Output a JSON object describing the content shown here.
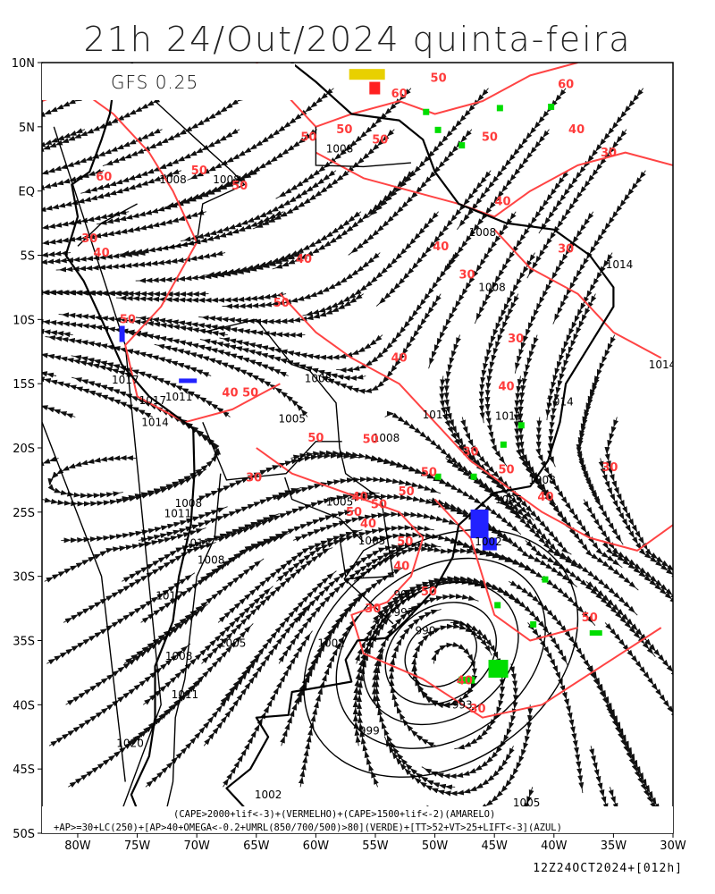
{
  "header": {
    "title": "21h 24/Out/2024 quinta-feira",
    "model": "GFS 0.25"
  },
  "axes": {
    "lat_labels": [
      "10N",
      "5N",
      "EQ",
      "5S",
      "10S",
      "15S",
      "20S",
      "25S",
      "30S",
      "35S",
      "40S",
      "45S",
      "50S"
    ],
    "lon_labels": [
      "80W",
      "75W",
      "70W",
      "65W",
      "60W",
      "55W",
      "50W",
      "45W",
      "40W",
      "35W",
      "30W"
    ]
  },
  "isobar_labels": [
    {
      "text": "1008",
      "lat": 3.0,
      "lon": -58.0
    },
    {
      "text": "1008",
      "lat": 0.6,
      "lon": -72.0
    },
    {
      "text": "1008",
      "lat": 0.6,
      "lon": -67.5
    },
    {
      "text": "1008",
      "lat": -3.5,
      "lon": -46.0
    },
    {
      "text": "1014",
      "lat": -6.0,
      "lon": -34.5
    },
    {
      "text": "1008",
      "lat": -7.8,
      "lon": -45.2
    },
    {
      "text": "1017",
      "lat": -15.0,
      "lon": -76.0
    },
    {
      "text": "1017",
      "lat": -16.6,
      "lon": -73.7
    },
    {
      "text": "1011",
      "lat": -16.3,
      "lon": -71.5
    },
    {
      "text": "1014",
      "lat": -18.3,
      "lon": -73.5
    },
    {
      "text": "1008",
      "lat": -14.9,
      "lon": -59.8
    },
    {
      "text": "1005",
      "lat": -18.0,
      "lon": -62.0
    },
    {
      "text": "1011",
      "lat": -17.7,
      "lon": -49.9
    },
    {
      "text": "1011",
      "lat": -17.8,
      "lon": -43.8
    },
    {
      "text": "1014",
      "lat": -16.7,
      "lon": -39.5
    },
    {
      "text": "1008",
      "lat": -19.5,
      "lon": -54.1
    },
    {
      "text": "1005",
      "lat": -24.5,
      "lon": -58.0
    },
    {
      "text": "1005",
      "lat": -24.3,
      "lon": -43.8
    },
    {
      "text": "1008",
      "lat": -22.8,
      "lon": -41.0
    },
    {
      "text": "1008",
      "lat": -24.6,
      "lon": -70.7
    },
    {
      "text": "1011",
      "lat": -25.4,
      "lon": -71.6
    },
    {
      "text": "1011",
      "lat": -27.7,
      "lon": -70.0
    },
    {
      "text": "1008",
      "lat": -29.0,
      "lon": -68.8
    },
    {
      "text": "1005",
      "lat": -27.5,
      "lon": -55.3
    },
    {
      "text": "1002",
      "lat": -27.6,
      "lon": -45.5
    },
    {
      "text": "1017",
      "lat": -31.8,
      "lon": -72.3
    },
    {
      "text": "996",
      "lat": -31.7,
      "lon": -52.6
    },
    {
      "text": "993",
      "lat": -33.1,
      "lon": -52.6
    },
    {
      "text": "990",
      "lat": -34.5,
      "lon": -50.8
    },
    {
      "text": "1005",
      "lat": -35.5,
      "lon": -67.0
    },
    {
      "text": "1002",
      "lat": -35.5,
      "lon": -58.7
    },
    {
      "text": "1008",
      "lat": -36.5,
      "lon": -71.5
    },
    {
      "text": "1011",
      "lat": -39.5,
      "lon": -71.0
    },
    {
      "text": "993",
      "lat": -40.3,
      "lon": -47.7
    },
    {
      "text": "999",
      "lat": -42.3,
      "lon": -55.5
    },
    {
      "text": "1020",
      "lat": -43.3,
      "lon": -75.6
    },
    {
      "text": "1002",
      "lat": -47.3,
      "lon": -64.0
    },
    {
      "text": "1005",
      "lat": -47.9,
      "lon": -42.3
    },
    {
      "text": "1014",
      "lat": -13.8,
      "lon": -30.9
    }
  ],
  "cape_labels": [
    {
      "text": "60",
      "lat": 7.3,
      "lon": -53.0
    },
    {
      "text": "50",
      "lat": 8.5,
      "lon": -49.7
    },
    {
      "text": "60",
      "lat": 8.0,
      "lon": -39.0
    },
    {
      "text": "50",
      "lat": 4.5,
      "lon": -57.6
    },
    {
      "text": "50",
      "lat": 3.9,
      "lon": -60.6
    },
    {
      "text": "50",
      "lat": 3.7,
      "lon": -54.6
    },
    {
      "text": "50",
      "lat": 3.9,
      "lon": -45.4
    },
    {
      "text": "40",
      "lat": 4.5,
      "lon": -38.1
    },
    {
      "text": "30",
      "lat": 2.7,
      "lon": -35.4
    },
    {
      "text": "60",
      "lat": 0.8,
      "lon": -77.8
    },
    {
      "text": "50",
      "lat": 1.3,
      "lon": -69.8
    },
    {
      "text": "50",
      "lat": 0.1,
      "lon": -66.4
    },
    {
      "text": "40",
      "lat": -1.1,
      "lon": -44.3
    },
    {
      "text": "30",
      "lat": -4.0,
      "lon": -79.0
    },
    {
      "text": "40",
      "lat": -5.1,
      "lon": -78.0
    },
    {
      "text": "40",
      "lat": -4.6,
      "lon": -49.5
    },
    {
      "text": "30",
      "lat": -4.8,
      "lon": -39.0
    },
    {
      "text": "40",
      "lat": -5.6,
      "lon": -61.0
    },
    {
      "text": "30",
      "lat": -6.8,
      "lon": -47.3
    },
    {
      "text": "50",
      "lat": -9.0,
      "lon": -62.9
    },
    {
      "text": "50",
      "lat": -10.3,
      "lon": -75.8
    },
    {
      "text": "30",
      "lat": -11.8,
      "lon": -43.2
    },
    {
      "text": "40",
      "lat": -13.3,
      "lon": -53.0
    },
    {
      "text": "40",
      "lat": -16.0,
      "lon": -67.2
    },
    {
      "text": "50",
      "lat": -16.0,
      "lon": -65.5
    },
    {
      "text": "40",
      "lat": -15.5,
      "lon": -44.0
    },
    {
      "text": "50",
      "lat": -19.5,
      "lon": -60.0
    },
    {
      "text": "50",
      "lat": -19.6,
      "lon": -55.4
    },
    {
      "text": "30",
      "lat": -20.6,
      "lon": -47.0
    },
    {
      "text": "50",
      "lat": -22.0,
      "lon": -44.0
    },
    {
      "text": "50",
      "lat": -22.2,
      "lon": -50.5
    },
    {
      "text": "30",
      "lat": -22.6,
      "lon": -65.2
    },
    {
      "text": "40",
      "lat": -24.1,
      "lon": -56.3
    },
    {
      "text": "50",
      "lat": -24.7,
      "lon": -54.7
    },
    {
      "text": "50",
      "lat": -23.7,
      "lon": -52.4
    },
    {
      "text": "50",
      "lat": -25.3,
      "lon": -56.8
    },
    {
      "text": "30",
      "lat": -21.8,
      "lon": -35.3
    },
    {
      "text": "40",
      "lat": -24.1,
      "lon": -40.7
    },
    {
      "text": "40",
      "lat": -26.2,
      "lon": -55.6
    },
    {
      "text": "50",
      "lat": -27.6,
      "lon": -52.5
    },
    {
      "text": "40",
      "lat": -29.5,
      "lon": -52.8
    },
    {
      "text": "50",
      "lat": -31.5,
      "lon": -50.5
    },
    {
      "text": "30",
      "lat": -32.8,
      "lon": -55.2
    },
    {
      "text": "50",
      "lat": -33.5,
      "lon": -37.0
    },
    {
      "text": "40",
      "lat": -38.4,
      "lon": -47.5
    },
    {
      "text": "30",
      "lat": -40.6,
      "lon": -46.4
    }
  ],
  "legend": {
    "line1": "(CAPE>2000+lif<-3)+(VERMELHO)+(CAPE>1500+lif<-2)(AMARELO)",
    "line2": "+AP>=30+LC(250)+[AP>40+OMEGA<-0.2+UMRL(850/700/500)>80](VERDE)+[TT>52+VT>25+LIFT<-3](AZUL)"
  },
  "footer": {
    "timestamp": "12Z24OCT2024+[012h]"
  },
  "colors": {
    "isobar": "#000000",
    "streamline": "#111111",
    "cape_contour": "#ff4444",
    "coast": "#000000",
    "green_flag": "#00dd00",
    "blue_flag": "#2222ff",
    "yellow_flag": "#e8d000",
    "red_flag": "#ff2020"
  }
}
